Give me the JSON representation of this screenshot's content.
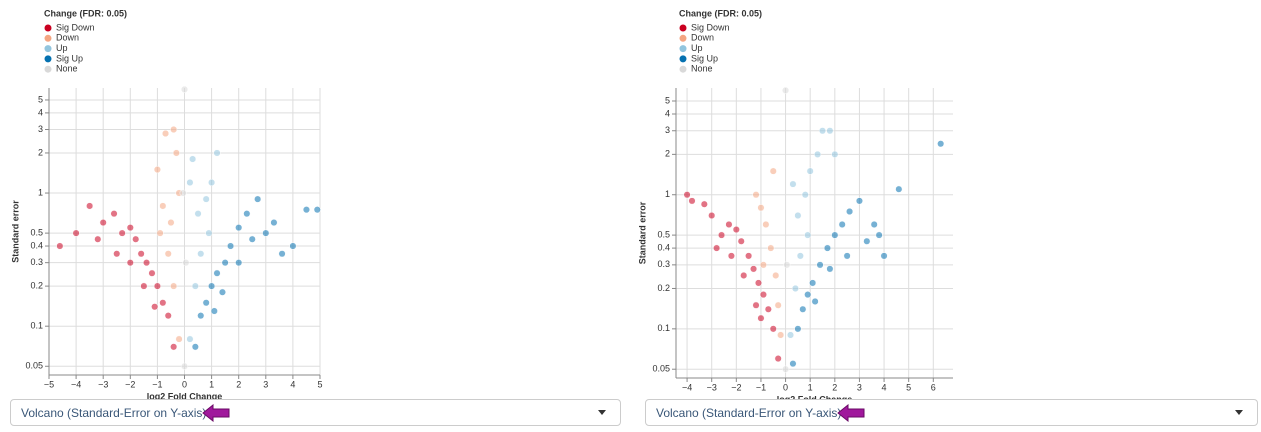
{
  "chart_data": [
    {
      "type": "scatter",
      "legend_title": "Change (FDR: 0.05)",
      "legend": "top-left",
      "log_y": true,
      "grid": true,
      "x_label": "log2 Fold Change",
      "y_label": "Standard error",
      "xlim": [
        -5,
        5
      ],
      "ylim": [
        0.043,
        6.15
      ],
      "xticks": [
        {
          "value": -5,
          "label": "−5"
        },
        {
          "value": -4,
          "label": "−4"
        },
        {
          "value": -3,
          "label": "−3"
        },
        {
          "value": -2,
          "label": "−2"
        },
        {
          "value": -1,
          "label": "−1"
        },
        0,
        1,
        2,
        3,
        4,
        5
      ],
      "yticks": [
        0.05,
        0.1,
        0.2,
        0.3,
        0.4,
        0.5,
        1,
        2,
        3,
        4,
        5
      ],
      "series": [
        {
          "name": "Sig Down",
          "color": "#ca0020",
          "x": [
            -0.4,
            -0.6,
            -0.8,
            -1.0,
            -1.2,
            -1.4,
            -1.6,
            -1.8,
            -2.0,
            -2.3,
            -2.6,
            -3.0,
            -3.5,
            -4.0,
            -4.6,
            -1.5,
            -2.0,
            -1.1,
            -2.5,
            -3.2
          ],
          "values": [
            0.07,
            0.12,
            0.15,
            0.2,
            0.25,
            0.3,
            0.35,
            0.45,
            0.55,
            0.5,
            0.7,
            0.6,
            0.8,
            0.5,
            0.4,
            0.2,
            0.3,
            0.14,
            0.35,
            0.45
          ]
        },
        {
          "name": "Down",
          "color": "#f4a582",
          "x": [
            -0.2,
            -0.4,
            -0.6,
            -0.5,
            -0.8,
            -1.0,
            -0.3,
            -0.7,
            -0.9,
            -0.2,
            -0.4
          ],
          "values": [
            0.08,
            0.2,
            0.35,
            0.6,
            0.8,
            1.5,
            2.0,
            2.8,
            0.5,
            1.0,
            3.0
          ]
        },
        {
          "name": "Up",
          "color": "#92c5de",
          "x": [
            0.2,
            0.4,
            0.6,
            0.5,
            0.8,
            1.0,
            0.3,
            1.2,
            0.9,
            0.2
          ],
          "values": [
            0.08,
            0.2,
            0.35,
            0.7,
            0.9,
            1.2,
            1.8,
            2.0,
            0.5,
            1.2
          ]
        },
        {
          "name": "Sig Up",
          "color": "#0571b0",
          "x": [
            0.4,
            0.6,
            0.8,
            1.0,
            1.2,
            1.5,
            1.7,
            2.0,
            2.3,
            2.7,
            3.0,
            3.3,
            3.6,
            4.0,
            4.5,
            4.9,
            1.4,
            2.0,
            2.5,
            1.1
          ],
          "values": [
            0.07,
            0.12,
            0.15,
            0.2,
            0.25,
            0.3,
            0.4,
            0.55,
            0.7,
            0.9,
            0.5,
            0.6,
            0.35,
            0.4,
            0.75,
            0.75,
            0.18,
            0.3,
            0.45,
            0.13
          ]
        },
        {
          "name": "None",
          "color": "#d9d9d9",
          "x": [
            0,
            0,
            0.05,
            -0.05
          ],
          "values": [
            0.05,
            6.0,
            0.3,
            1.0
          ]
        }
      ]
    },
    {
      "type": "scatter",
      "legend_title": "Change (FDR: 0.05)",
      "legend": "top-left",
      "log_y": true,
      "grid": true,
      "x_label": "log2 Fold Change",
      "y_label": "Standard error",
      "xlim": [
        -4.45,
        6.8
      ],
      "ylim": [
        0.043,
        6.25
      ],
      "xticks": [
        {
          "value": -4,
          "label": "−4"
        },
        {
          "value": -3,
          "label": "−3"
        },
        {
          "value": -2,
          "label": "−2"
        },
        {
          "value": -1,
          "label": "−1"
        },
        0,
        1,
        2,
        3,
        4,
        5,
        6
      ],
      "yticks": [
        0.05,
        0.1,
        0.2,
        0.3,
        0.4,
        0.5,
        1,
        2,
        3,
        4,
        5
      ],
      "series": [
        {
          "name": "Sig Down",
          "color": "#ca0020",
          "x": [
            -0.3,
            -0.5,
            -0.7,
            -0.9,
            -1.1,
            -1.3,
            -1.5,
            -1.8,
            -2.0,
            -2.3,
            -2.6,
            -3.0,
            -3.3,
            -3.8,
            -4.0,
            -1.2,
            -1.7,
            -2.2,
            -2.8,
            -1.0
          ],
          "values": [
            0.06,
            0.1,
            0.14,
            0.18,
            0.22,
            0.28,
            0.35,
            0.45,
            0.55,
            0.6,
            0.5,
            0.7,
            0.85,
            0.9,
            1.0,
            0.15,
            0.25,
            0.35,
            0.4,
            0.12
          ]
        },
        {
          "name": "Down",
          "color": "#f4a582",
          "x": [
            -0.2,
            -0.4,
            -0.6,
            -0.8,
            -1.0,
            -1.2,
            -0.5,
            -0.3,
            -0.9
          ],
          "values": [
            0.09,
            0.25,
            0.4,
            0.6,
            0.8,
            1.0,
            1.5,
            0.15,
            0.3
          ]
        },
        {
          "name": "Up",
          "color": "#92c5de",
          "x": [
            0.2,
            0.4,
            0.6,
            0.5,
            0.8,
            1.0,
            1.3,
            1.5,
            1.8,
            0.3,
            2.0,
            0.9
          ],
          "values": [
            0.09,
            0.2,
            0.35,
            0.7,
            1.0,
            1.5,
            2.0,
            3.0,
            3.0,
            1.2,
            2.0,
            0.5
          ]
        },
        {
          "name": "Sig Up",
          "color": "#0571b0",
          "x": [
            0.3,
            0.5,
            0.7,
            0.9,
            1.1,
            1.4,
            1.7,
            2.0,
            2.3,
            2.6,
            3.0,
            3.3,
            3.6,
            4.0,
            4.6,
            6.3,
            1.2,
            1.8,
            2.5,
            3.8
          ],
          "values": [
            0.055,
            0.1,
            0.14,
            0.18,
            0.22,
            0.3,
            0.4,
            0.5,
            0.6,
            0.75,
            0.9,
            0.45,
            0.6,
            0.35,
            1.1,
            2.4,
            0.16,
            0.28,
            0.35,
            0.5
          ]
        },
        {
          "name": "None",
          "color": "#d9d9d9",
          "x": [
            0,
            0,
            0.05
          ],
          "values": [
            0.05,
            6.0,
            0.3
          ]
        }
      ]
    }
  ],
  "dropdowns": [
    {
      "label": "Volcano (Standard-Error on Y-axis)"
    },
    {
      "label": "Volcano (Standard-Error on Y-axis)"
    }
  ]
}
